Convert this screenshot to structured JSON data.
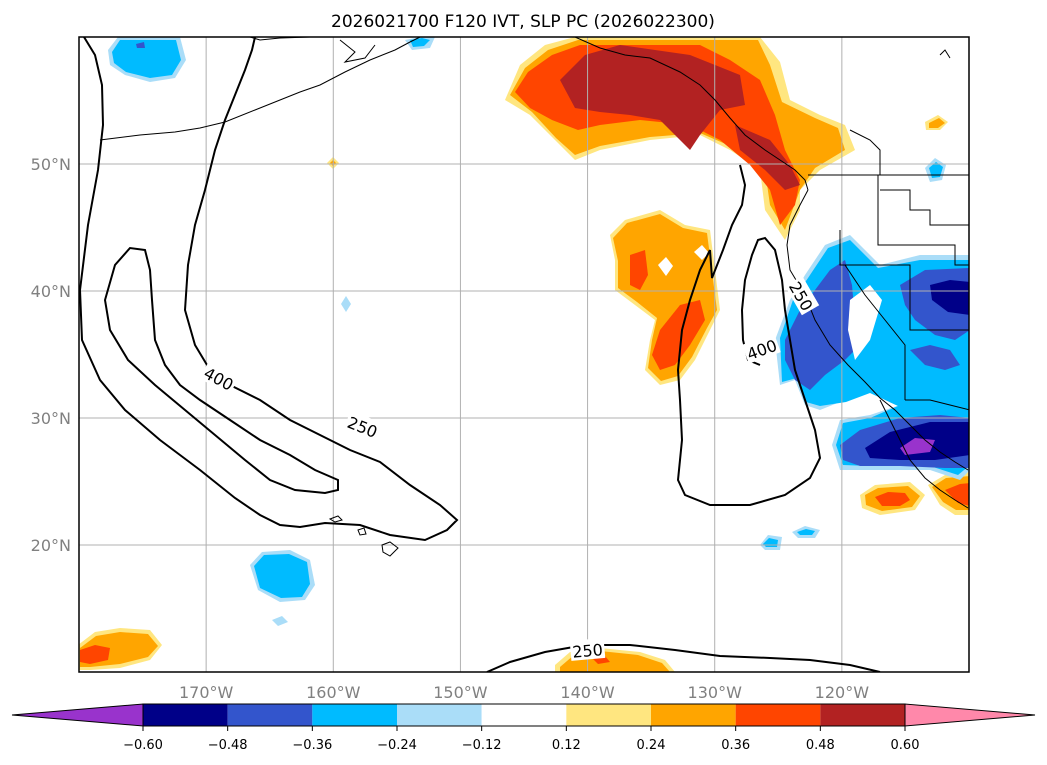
{
  "title": "2026021700 F120 IVT, SLP PC (2026022300)",
  "map": {
    "lon_range": [
      -180,
      -110
    ],
    "lat_range": [
      10,
      60
    ],
    "grid": true,
    "lat_ticks": [
      {
        "value": 50,
        "label": "50°N"
      },
      {
        "value": 40,
        "label": "40°N"
      },
      {
        "value": 30,
        "label": "30°N"
      },
      {
        "value": 20,
        "label": "20°N"
      }
    ],
    "lon_ticks": [
      {
        "value": -170,
        "label": "170°W"
      },
      {
        "value": -160,
        "label": "160°W"
      },
      {
        "value": -150,
        "label": "150°W"
      },
      {
        "value": -140,
        "label": "140°W"
      },
      {
        "value": -130,
        "label": "130°W"
      },
      {
        "value": -120,
        "label": "120°W"
      }
    ],
    "contour_labels": [
      {
        "text": "400",
        "lon": -169,
        "lat": 33.1,
        "rot": 28
      },
      {
        "text": "250",
        "lon": -157.7,
        "lat": 29.3,
        "rot": 22
      },
      {
        "text": "400",
        "lon": -126.3,
        "lat": 35.4,
        "rot": -20
      },
      {
        "text": "250",
        "lon": -123.2,
        "lat": 39.6,
        "rot": 60
      },
      {
        "text": "250",
        "lon": -140.0,
        "lat": 11.7,
        "rot": -5
      }
    ]
  },
  "colorbar": {
    "ticks": [
      "−0.60",
      "−0.48",
      "−0.36",
      "−0.24",
      "−0.12",
      "0.12",
      "0.24",
      "0.36",
      "0.48",
      "0.60"
    ],
    "colors": {
      "under": "#9933cc",
      "bins": [
        "#000088",
        "#3355cc",
        "#00bbff",
        "#aaddf8",
        "#ffffff",
        "#ffe680",
        "#ffa500",
        "#ff4500",
        "#b22222"
      ],
      "over": "#ff88aa"
    }
  }
}
